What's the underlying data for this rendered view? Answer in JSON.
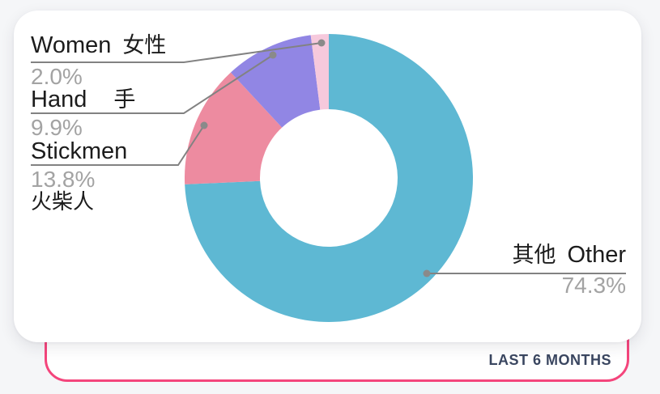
{
  "page": {
    "background_color": "#F5F6F8"
  },
  "chart_card": {
    "background_color": "#FFFFFF"
  },
  "footer": {
    "period_label": "LAST 6 MONTHS",
    "text_color": "#3A4660",
    "border_color": "#F4457C"
  },
  "chart_data": {
    "type": "pie",
    "donut": true,
    "title": "",
    "start_angle_deg": 0,
    "direction": "clockwise",
    "legend_position": "callouts",
    "slices": [
      {
        "label_en": "Other",
        "label_zh": "其他",
        "value": 74.3,
        "pct_label": "74.3%",
        "color": "#5EB8D3"
      },
      {
        "label_en": "Stickmen",
        "label_zh": "火柴人",
        "value": 13.8,
        "pct_label": "13.8%",
        "color": "#ED8BA0"
      },
      {
        "label_en": "Hand",
        "label_zh": "手",
        "value": 9.9,
        "pct_label": "9.9%",
        "color": "#9186E4"
      },
      {
        "label_en": "Women",
        "label_zh": "女性",
        "value": 2.0,
        "pct_label": "2.0%",
        "color": "#F6C9DC"
      }
    ],
    "callout_style": {
      "line_color": "#828282",
      "dot_color": "#8A8A8A",
      "label_color": "#1C1C1C",
      "pct_color": "#A3A3A3"
    }
  }
}
